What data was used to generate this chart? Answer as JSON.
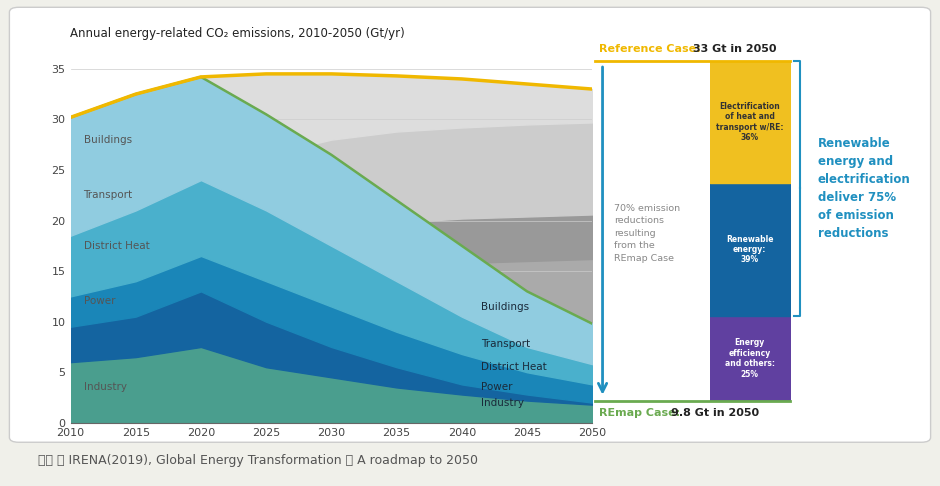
{
  "title": "Annual energy-related CO₂ emissions, 2010-2050 (Gt/yr)",
  "source_text": "자료 ： IRENA(2019), Global Energy Transformation ： A roadmap to 2050",
  "years": [
    2010,
    2015,
    2020,
    2025,
    2030,
    2035,
    2040,
    2045,
    2050
  ],
  "reference_line": [
    30.2,
    32.5,
    34.2,
    34.5,
    34.5,
    34.3,
    34.0,
    33.5,
    33.0
  ],
  "sectors_remap_cumulative": {
    "Industry": [
      6.0,
      6.5,
      7.5,
      5.5,
      4.5,
      3.5,
      2.8,
      2.2,
      1.8
    ],
    "Power": [
      9.5,
      10.5,
      13.0,
      10.0,
      7.5,
      5.5,
      3.8,
      2.8,
      2.0
    ],
    "District Heat": [
      12.5,
      14.0,
      16.5,
      14.0,
      11.5,
      9.0,
      6.8,
      5.0,
      3.8
    ],
    "Transport": [
      18.5,
      21.0,
      24.0,
      21.0,
      17.5,
      14.0,
      10.5,
      7.5,
      5.8
    ],
    "Buildings": [
      30.2,
      32.5,
      34.2,
      30.5,
      26.5,
      22.0,
      17.5,
      13.0,
      9.8
    ]
  },
  "sectors_ref_cumulative": {
    "Industry": [
      6.0,
      6.5,
      7.5,
      8.0,
      8.5,
      9.0,
      9.2,
      9.3,
      9.4
    ],
    "Power": [
      9.5,
      10.5,
      13.0,
      14.2,
      15.0,
      15.5,
      15.8,
      16.0,
      16.2
    ],
    "District Heat": [
      12.5,
      14.0,
      16.5,
      18.0,
      19.0,
      19.8,
      20.2,
      20.4,
      20.6
    ],
    "Transport": [
      18.5,
      21.0,
      24.0,
      26.5,
      28.0,
      28.8,
      29.2,
      29.5,
      29.7
    ],
    "Buildings": [
      30.2,
      32.5,
      34.2,
      34.5,
      34.5,
      34.3,
      34.0,
      33.5,
      33.0
    ]
  },
  "colors_remap": {
    "Industry": "#4a9e8e",
    "Power": "#1464a0",
    "District Heat": "#1a86b8",
    "Transport": "#4ab0cc",
    "Buildings": "#90cce0"
  },
  "colors_ref": {
    "Industry": "#bbbbbb",
    "Power": "#aaaaaa",
    "District Heat": "#999999",
    "Transport": "#cccccc",
    "Buildings": "#dddddd"
  },
  "reference_color": "#f0b800",
  "remap_line_color": "#6aaa50",
  "pie_colors": [
    "#f0c020",
    "#1464a0",
    "#6040a0"
  ],
  "pie_values": [
    36,
    39,
    25
  ],
  "pie_labels_line1": [
    "Electrification",
    "Renewable",
    "Energy"
  ],
  "pie_labels_line2": [
    "of heat and",
    "energy:",
    "efficiency"
  ],
  "pie_labels_line3": [
    "transport w/RE:",
    "39%",
    "and others:"
  ],
  "pie_labels_line4": [
    "36%",
    "",
    "25%"
  ],
  "left_labels": {
    "Buildings": 28.0,
    "Transport": 22.5,
    "District Heat": 17.5,
    "Power": 12.0,
    "Industry": 3.5
  },
  "right_labels": {
    "Buildings": 11.5,
    "Transport": 7.8,
    "District Heat": 5.5,
    "Power": 3.5,
    "Industry": 2.0
  }
}
